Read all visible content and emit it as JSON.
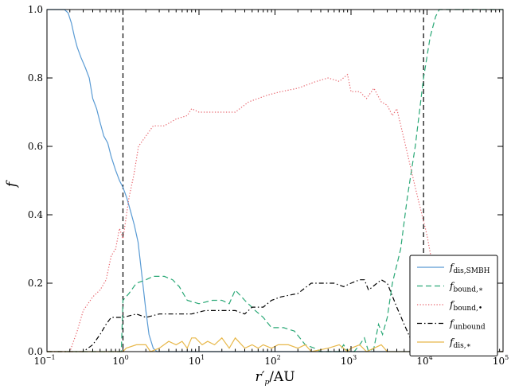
{
  "chart_data": {
    "type": "line",
    "title": "",
    "xlabel": "r′p/AU",
    "ylabel": "f",
    "xscale": "log",
    "xlim": [
      0.1,
      100000
    ],
    "ylim": [
      0,
      1.0
    ],
    "grid": false,
    "legend_position": "lower-right",
    "x_tick_labels": [
      "10",
      "10",
      "10",
      "10",
      "10",
      "10",
      "10"
    ],
    "x_tick_exponents": [
      "−1",
      "0",
      "1",
      "2",
      "3",
      "4",
      "5"
    ],
    "x_tick_values": [
      0.1,
      1,
      10,
      100,
      1000,
      10000,
      100000
    ],
    "y_tick_labels": [
      "0.0",
      "0.2",
      "0.4",
      "0.6",
      "0.8",
      "1.0"
    ],
    "y_tick_values": [
      0,
      0.2,
      0.4,
      0.6,
      0.8,
      1.0
    ],
    "vertical_lines": [
      1,
      9000
    ],
    "series": [
      {
        "name": "f",
        "name_sub": "dis,SMBH",
        "color": "#5a9bd4",
        "style": "solid",
        "points": [
          [
            0.1,
            1.0
          ],
          [
            0.17,
            1.0
          ],
          [
            0.19,
            0.99
          ],
          [
            0.21,
            0.96
          ],
          [
            0.23,
            0.92
          ],
          [
            0.25,
            0.89
          ],
          [
            0.28,
            0.86
          ],
          [
            0.32,
            0.83
          ],
          [
            0.36,
            0.8
          ],
          [
            0.4,
            0.74
          ],
          [
            0.45,
            0.71
          ],
          [
            0.5,
            0.67
          ],
          [
            0.56,
            0.63
          ],
          [
            0.63,
            0.61
          ],
          [
            0.7,
            0.57
          ],
          [
            0.8,
            0.53
          ],
          [
            0.9,
            0.5
          ],
          [
            1.0,
            0.48
          ],
          [
            1.12,
            0.45
          ],
          [
            1.26,
            0.41
          ],
          [
            1.41,
            0.37
          ],
          [
            1.58,
            0.32
          ],
          [
            1.78,
            0.22
          ],
          [
            2.0,
            0.12
          ],
          [
            2.2,
            0.05
          ],
          [
            2.5,
            0.01
          ],
          [
            2.8,
            0.0
          ],
          [
            100000,
            0.0
          ]
        ]
      },
      {
        "name": "f",
        "name_sub": "bound,∗",
        "color": "#2aa876",
        "style": "dashed",
        "points": [
          [
            0.1,
            0.0
          ],
          [
            0.95,
            0.0
          ],
          [
            1.0,
            0.15
          ],
          [
            1.2,
            0.17
          ],
          [
            1.5,
            0.2
          ],
          [
            2.0,
            0.21
          ],
          [
            2.5,
            0.22
          ],
          [
            3.5,
            0.22
          ],
          [
            4.5,
            0.21
          ],
          [
            5.5,
            0.19
          ],
          [
            7.0,
            0.15
          ],
          [
            10,
            0.14
          ],
          [
            15,
            0.15
          ],
          [
            20,
            0.15
          ],
          [
            25,
            0.14
          ],
          [
            30,
            0.18
          ],
          [
            40,
            0.15
          ],
          [
            55,
            0.12
          ],
          [
            70,
            0.1
          ],
          [
            90,
            0.07
          ],
          [
            130,
            0.07
          ],
          [
            180,
            0.06
          ],
          [
            250,
            0.02
          ],
          [
            330,
            0.01
          ],
          [
            400,
            0.0
          ],
          [
            700,
            0.0
          ],
          [
            800,
            0.02
          ],
          [
            900,
            0.0
          ],
          [
            1100,
            0.0
          ],
          [
            1300,
            0.02
          ],
          [
            1500,
            0.04
          ],
          [
            1700,
            0.0
          ],
          [
            2000,
            0.01
          ],
          [
            2300,
            0.08
          ],
          [
            2600,
            0.05
          ],
          [
            3000,
            0.1
          ],
          [
            3500,
            0.2
          ],
          [
            4500,
            0.3
          ],
          [
            5500,
            0.45
          ],
          [
            7000,
            0.6
          ],
          [
            9000,
            0.8
          ],
          [
            11000,
            0.92
          ],
          [
            13000,
            0.98
          ],
          [
            14500,
            1.0
          ],
          [
            100000,
            1.0
          ]
        ]
      },
      {
        "name": "f",
        "name_sub": "bound,•",
        "color": "#e8666e",
        "style": "dotted",
        "points": [
          [
            0.1,
            0.0
          ],
          [
            0.2,
            0.0
          ],
          [
            0.25,
            0.06
          ],
          [
            0.3,
            0.12
          ],
          [
            0.4,
            0.16
          ],
          [
            0.5,
            0.18
          ],
          [
            0.6,
            0.21
          ],
          [
            0.7,
            0.28
          ],
          [
            0.8,
            0.3
          ],
          [
            0.9,
            0.36
          ],
          [
            1.0,
            0.33
          ],
          [
            1.2,
            0.45
          ],
          [
            1.4,
            0.52
          ],
          [
            1.6,
            0.6
          ],
          [
            2.0,
            0.63
          ],
          [
            2.5,
            0.66
          ],
          [
            3.5,
            0.66
          ],
          [
            5,
            0.68
          ],
          [
            7,
            0.69
          ],
          [
            8,
            0.71
          ],
          [
            10,
            0.7
          ],
          [
            15,
            0.7
          ],
          [
            30,
            0.7
          ],
          [
            45,
            0.73
          ],
          [
            60,
            0.74
          ],
          [
            80,
            0.75
          ],
          [
            120,
            0.76
          ],
          [
            200,
            0.77
          ],
          [
            350,
            0.79
          ],
          [
            500,
            0.8
          ],
          [
            700,
            0.79
          ],
          [
            900,
            0.81
          ],
          [
            1000,
            0.76
          ],
          [
            1300,
            0.76
          ],
          [
            1600,
            0.74
          ],
          [
            2000,
            0.77
          ],
          [
            2500,
            0.73
          ],
          [
            3000,
            0.72
          ],
          [
            3500,
            0.69
          ],
          [
            4000,
            0.71
          ],
          [
            5000,
            0.62
          ],
          [
            7000,
            0.48
          ],
          [
            10000,
            0.34
          ],
          [
            13000,
            0.2
          ],
          [
            15000,
            0.1
          ],
          [
            17000,
            0.03
          ],
          [
            20000,
            0.0
          ],
          [
            100000,
            0.0
          ]
        ]
      },
      {
        "name": "f",
        "name_sub": "unbound",
        "color": "#000000",
        "style": "dashdot",
        "points": [
          [
            0.1,
            0.0
          ],
          [
            0.3,
            0.0
          ],
          [
            0.4,
            0.02
          ],
          [
            0.5,
            0.05
          ],
          [
            0.6,
            0.08
          ],
          [
            0.7,
            0.1
          ],
          [
            1.0,
            0.1
          ],
          [
            1.5,
            0.11
          ],
          [
            2.0,
            0.1
          ],
          [
            3.0,
            0.11
          ],
          [
            5,
            0.11
          ],
          [
            8,
            0.11
          ],
          [
            12,
            0.12
          ],
          [
            20,
            0.12
          ],
          [
            30,
            0.12
          ],
          [
            40,
            0.11
          ],
          [
            50,
            0.13
          ],
          [
            70,
            0.13
          ],
          [
            90,
            0.15
          ],
          [
            120,
            0.16
          ],
          [
            200,
            0.17
          ],
          [
            300,
            0.2
          ],
          [
            400,
            0.2
          ],
          [
            600,
            0.2
          ],
          [
            800,
            0.19
          ],
          [
            1000,
            0.2
          ],
          [
            1300,
            0.21
          ],
          [
            1500,
            0.21
          ],
          [
            1700,
            0.18
          ],
          [
            2500,
            0.21
          ],
          [
            3000,
            0.2
          ],
          [
            4000,
            0.13
          ],
          [
            5000,
            0.08
          ],
          [
            6000,
            0.04
          ],
          [
            8000,
            0.01
          ],
          [
            10000,
            0.0
          ],
          [
            100000,
            0.0
          ]
        ]
      },
      {
        "name": "f",
        "name_sub": "dis,∗",
        "color": "#e8b84a",
        "style": "solid",
        "points": [
          [
            0.1,
            0.0
          ],
          [
            1.0,
            0.0
          ],
          [
            1.1,
            0.01
          ],
          [
            1.5,
            0.02
          ],
          [
            2.0,
            0.02
          ],
          [
            2.3,
            0.0
          ],
          [
            3.0,
            0.01
          ],
          [
            4.0,
            0.03
          ],
          [
            5.0,
            0.02
          ],
          [
            6.0,
            0.03
          ],
          [
            7.0,
            0.01
          ],
          [
            8.0,
            0.04
          ],
          [
            9.0,
            0.04
          ],
          [
            11,
            0.02
          ],
          [
            13,
            0.03
          ],
          [
            16,
            0.02
          ],
          [
            20,
            0.04
          ],
          [
            25,
            0.01
          ],
          [
            30,
            0.04
          ],
          [
            40,
            0.01
          ],
          [
            50,
            0.02
          ],
          [
            60,
            0.01
          ],
          [
            70,
            0.02
          ],
          [
            90,
            0.01
          ],
          [
            110,
            0.02
          ],
          [
            150,
            0.02
          ],
          [
            200,
            0.01
          ],
          [
            250,
            0.02
          ],
          [
            300,
            0.0
          ],
          [
            500,
            0.01
          ],
          [
            700,
            0.02
          ],
          [
            900,
            0.0
          ],
          [
            1000,
            0.01
          ],
          [
            1300,
            0.02
          ],
          [
            1600,
            0.0
          ],
          [
            2000,
            0.01
          ],
          [
            2500,
            0.02
          ],
          [
            3000,
            0.0
          ],
          [
            100000,
            0.0
          ]
        ]
      }
    ]
  }
}
